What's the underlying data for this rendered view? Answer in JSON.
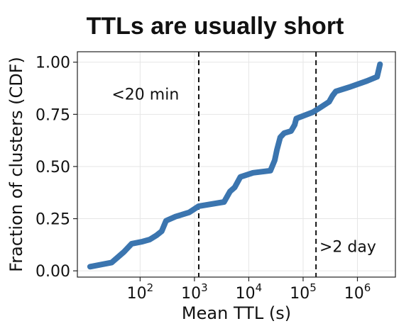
{
  "chart_data": {
    "type": "line",
    "title": "TTLs are usually short",
    "xlabel": "Mean TTL (s)",
    "ylabel": "Fraction of clusters (CDF)",
    "xscale": "log",
    "xlim": [
      7,
      5000000
    ],
    "ylim": [
      -0.03,
      1.05
    ],
    "grid": true,
    "x_ticks": [
      {
        "value": 100,
        "base": "10",
        "exp": "2"
      },
      {
        "value": 1000,
        "base": "10",
        "exp": "3"
      },
      {
        "value": 10000,
        "base": "10",
        "exp": "4"
      },
      {
        "value": 100000,
        "base": "10",
        "exp": "5"
      },
      {
        "value": 1000000,
        "base": "10",
        "exp": "6"
      }
    ],
    "y_ticks": [
      {
        "value": 0.0,
        "label": "0.00"
      },
      {
        "value": 0.25,
        "label": "0.25"
      },
      {
        "value": 0.5,
        "label": "0.50"
      },
      {
        "value": 0.75,
        "label": "0.75"
      },
      {
        "value": 1.0,
        "label": "1.00"
      }
    ],
    "series": [
      {
        "color": "#3b75af",
        "x": [
          12,
          30,
          50,
          70,
          110,
          150,
          200,
          250,
          300,
          450,
          800,
          1200,
          3500,
          4500,
          5500,
          7000,
          12000,
          25000,
          30000,
          33000,
          38000,
          45000,
          60000,
          70000,
          75000,
          120000,
          150000,
          200000,
          300000,
          350000,
          400000,
          700000,
          1500000,
          2300000,
          2600000
        ],
        "y": [
          0.02,
          0.04,
          0.09,
          0.13,
          0.14,
          0.15,
          0.17,
          0.19,
          0.24,
          0.26,
          0.28,
          0.31,
          0.33,
          0.38,
          0.4,
          0.45,
          0.47,
          0.48,
          0.53,
          0.58,
          0.64,
          0.66,
          0.67,
          0.7,
          0.73,
          0.75,
          0.76,
          0.78,
          0.81,
          0.84,
          0.86,
          0.88,
          0.91,
          0.93,
          0.99
        ]
      }
    ],
    "vlines": [
      {
        "x": 1200,
        "style": "dashed",
        "color": "#111111"
      },
      {
        "x": 172800,
        "style": "dashed",
        "color": "#111111"
      }
    ],
    "annotations": [
      {
        "text": "<20 min",
        "x": 30,
        "y": 0.82
      },
      {
        "text": ">2 day",
        "x": 200000,
        "y": 0.09
      }
    ]
  }
}
